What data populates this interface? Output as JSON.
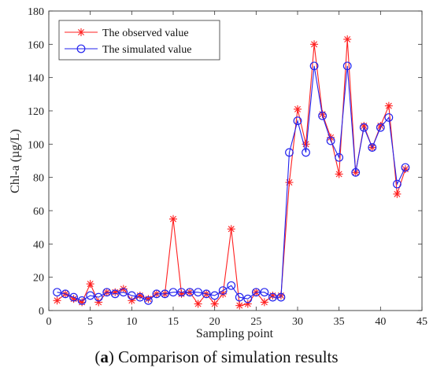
{
  "caption": {
    "open_paren": "(",
    "letter": "a",
    "rest": ") Comparison of simulation results"
  },
  "chart_data": {
    "type": "line",
    "title": "",
    "xlabel": "Sampling point",
    "ylabel": "Chl-a (µg/L)",
    "xlim": [
      0,
      45
    ],
    "ylim": [
      0,
      180
    ],
    "xticks": [
      0,
      5,
      10,
      15,
      20,
      25,
      30,
      35,
      40,
      45
    ],
    "yticks": [
      0,
      20,
      40,
      60,
      80,
      100,
      120,
      140,
      160,
      180
    ],
    "grid": false,
    "legend_position": "top-left",
    "x": [
      1,
      2,
      3,
      4,
      5,
      6,
      7,
      8,
      9,
      10,
      11,
      12,
      13,
      14,
      15,
      16,
      17,
      18,
      19,
      20,
      21,
      22,
      23,
      24,
      25,
      26,
      27,
      28,
      29,
      30,
      31,
      32,
      33,
      34,
      35,
      36,
      37,
      38,
      39,
      40,
      41,
      42,
      43
    ],
    "series": [
      {
        "name": "The observed value",
        "color": "#ff2020",
        "marker": "asterisk",
        "values": [
          6,
          10,
          7,
          5,
          16,
          5,
          11,
          11,
          13,
          6,
          9,
          7,
          10,
          10,
          55,
          10,
          11,
          4,
          10,
          4,
          10,
          49,
          3,
          4,
          11,
          5,
          9,
          9,
          77,
          121,
          100,
          160,
          118,
          104,
          82,
          163,
          83,
          111,
          98,
          111,
          123,
          70,
          85
        ]
      },
      {
        "name": "The simulated value",
        "color": "#2222ee",
        "marker": "circle",
        "values": [
          11,
          10,
          8,
          6,
          9,
          8,
          11,
          10,
          11,
          9,
          8,
          6,
          10,
          10,
          11,
          11,
          11,
          11,
          10,
          9,
          12,
          15,
          8,
          7,
          11,
          11,
          8,
          8,
          95,
          114,
          95,
          147,
          117,
          102,
          92,
          147,
          83,
          110,
          98,
          110,
          116,
          76,
          86
        ]
      }
    ]
  }
}
